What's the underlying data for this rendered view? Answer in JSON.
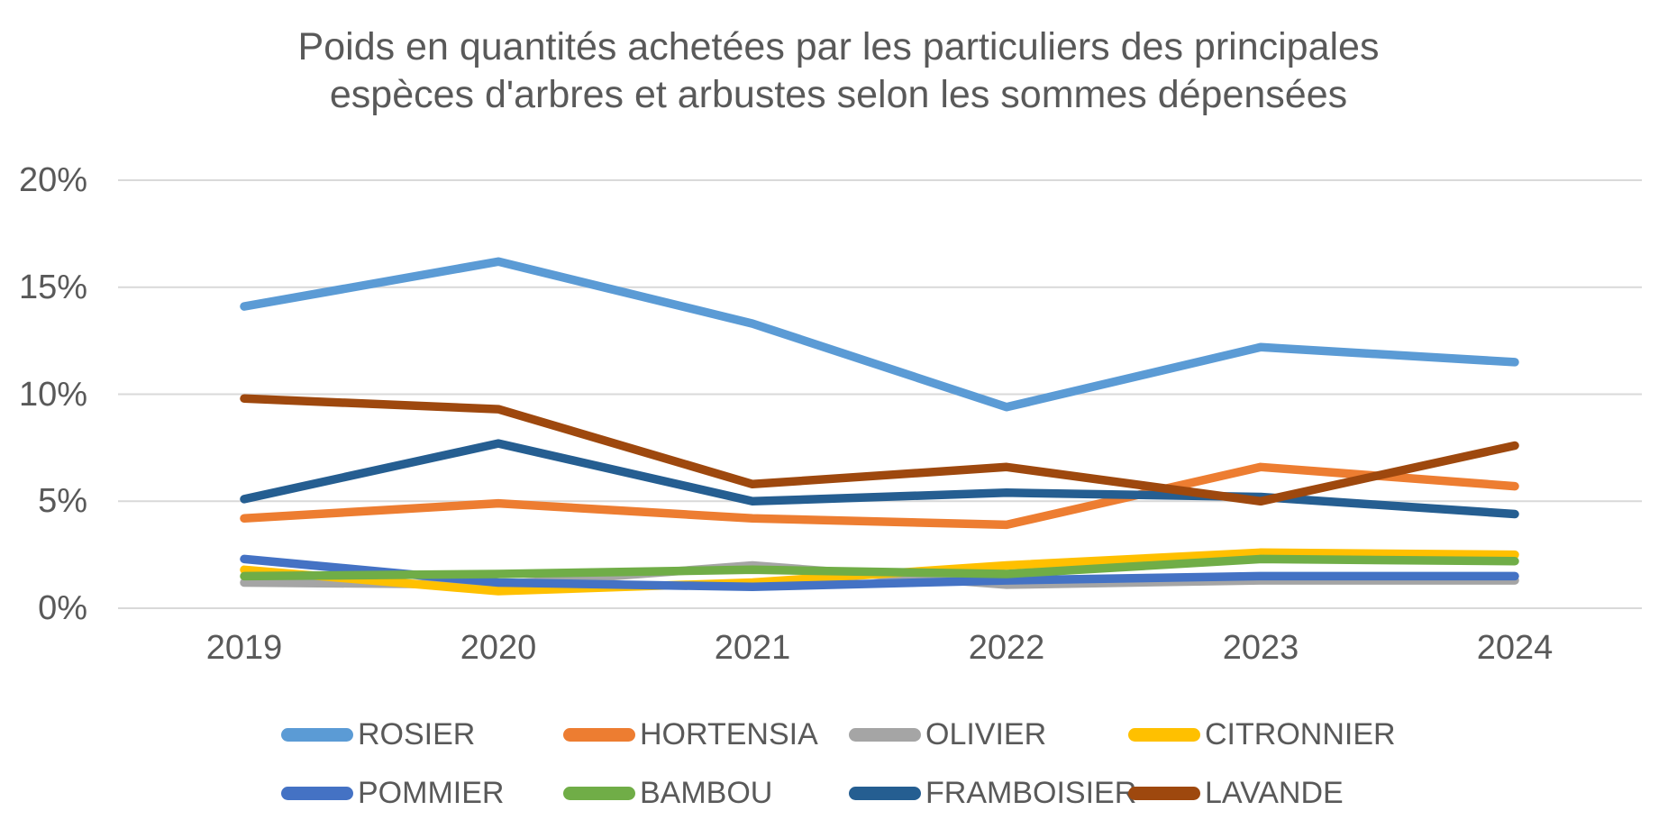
{
  "chart": {
    "title_lines": [
      "Poids en quantités achetées par les particuliers des principales",
      "espèces d'arbres et arbustes selon les sommes dépensées"
    ]
  },
  "chart_data": {
    "type": "line",
    "title": "Poids en quantités achetées par les particuliers des principales espèces d'arbres et arbustes selon les sommes dépensées",
    "categories": [
      "2019",
      "2020",
      "2021",
      "2022",
      "2023",
      "2024"
    ],
    "series": [
      {
        "name": "ROSIER",
        "color": "#5B9BD5",
        "values": [
          14.1,
          16.2,
          13.3,
          9.4,
          12.2,
          11.5
        ]
      },
      {
        "name": "HORTENSIA",
        "color": "#ED7D31",
        "values": [
          4.2,
          4.9,
          4.2,
          3.9,
          6.6,
          5.7
        ]
      },
      {
        "name": "OLIVIER",
        "color": "#A5A5A5",
        "values": [
          1.2,
          1.1,
          2.0,
          1.1,
          1.3,
          1.3
        ]
      },
      {
        "name": "CITRONNIER",
        "color": "#FFC000",
        "values": [
          1.8,
          0.8,
          1.2,
          2.0,
          2.6,
          2.5
        ]
      },
      {
        "name": "POMMIER",
        "color": "#4472C4",
        "values": [
          2.3,
          1.2,
          1.0,
          1.3,
          1.5,
          1.5
        ]
      },
      {
        "name": "BAMBOU",
        "color": "#70AD47",
        "values": [
          1.5,
          1.6,
          1.8,
          1.6,
          2.3,
          2.2
        ]
      },
      {
        "name": "FRAMBOISIER",
        "color": "#255E91",
        "values": [
          5.1,
          7.7,
          5.0,
          5.4,
          5.2,
          4.4
        ]
      },
      {
        "name": "LAVANDE",
        "color": "#9E480E",
        "values": [
          9.8,
          9.3,
          5.8,
          6.6,
          5.0,
          7.6
        ]
      }
    ],
    "ylim": [
      0,
      20
    ],
    "ytick_values": [
      0,
      5,
      10,
      15,
      20
    ],
    "ytick_labels": [
      "0%",
      "5%",
      "10%",
      "15%",
      "20%"
    ],
    "grid": "horizontal",
    "legend_position": "bottom",
    "text_color": "#595959",
    "gridline_color": "#D9D9D9",
    "background_color": "#FFFFFF"
  }
}
